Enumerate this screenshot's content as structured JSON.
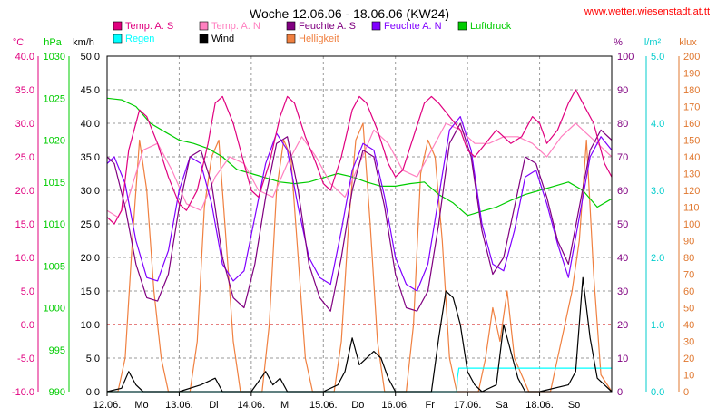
{
  "chart_data": {
    "type": "line",
    "title": "Woche 12.06.06 - 18.06.06 (KW24)",
    "source_label": "www.wetter.wiesenstadt.at.tt",
    "x": {
      "ticks": [
        "12.06.",
        "13.06.",
        "14.06.",
        "15.06.",
        "16.06.",
        "17.06.",
        "18.06."
      ],
      "day_names": [
        "Mo",
        "Di",
        "Mi",
        "Do",
        "Fr",
        "Sa",
        "So"
      ],
      "range_days": [
        0,
        7
      ]
    },
    "axes": [
      {
        "key": "temp",
        "unit": "°C",
        "range": [
          -10,
          40
        ],
        "color": "#e0007f",
        "ticks": [
          "40.0",
          "35.0",
          "30.0",
          "25.0",
          "20.0",
          "15.0",
          "10.0",
          "5.0",
          "0.0",
          "-5.0",
          "-10.0"
        ]
      },
      {
        "key": "pressure",
        "unit": "hPa",
        "range": [
          990,
          1030
        ],
        "color": "#00cc00",
        "ticks": [
          "1030",
          "1025",
          "1020",
          "1015",
          "1010",
          "1005",
          "1000",
          "995",
          "990"
        ]
      },
      {
        "key": "wind",
        "unit": "km/h",
        "range": [
          0,
          50
        ],
        "color": "#000000",
        "ticks": [
          "50.0",
          "45.0",
          "40.0",
          "35.0",
          "30.0",
          "25.0",
          "20.0",
          "15.0",
          "10.0",
          "5.0",
          "0.0"
        ]
      },
      {
        "key": "humidity",
        "unit": "%",
        "range": [
          0,
          100
        ],
        "color": "#800080",
        "ticks": [
          "100",
          "90",
          "80",
          "70",
          "60",
          "50",
          "40",
          "30",
          "20",
          "10",
          "0"
        ]
      },
      {
        "key": "rain",
        "unit": "l/m²",
        "range": [
          0,
          5
        ],
        "color": "#00cccc",
        "ticks": [
          "5.0",
          "4.0",
          "3.0",
          "2.0",
          "1.0",
          "0.0"
        ]
      },
      {
        "key": "light",
        "unit": "klux",
        "range": [
          0,
          200
        ],
        "color": "#e07830",
        "ticks": [
          "200",
          "190",
          "180",
          "170",
          "160",
          "150",
          "140",
          "130",
          "120",
          "110",
          "100",
          "90",
          "80",
          "70",
          "60",
          "50",
          "40",
          "30",
          "20",
          "10",
          "0"
        ]
      }
    ],
    "legend": [
      {
        "name": "Temp. A. S",
        "color": "#e0007f"
      },
      {
        "name": "Temp. A. N",
        "color": "#ff80c0"
      },
      {
        "name": "Feuchte A. S",
        "color": "#800080"
      },
      {
        "name": "Feuchte A. N",
        "color": "#8000ff"
      },
      {
        "name": "Luftdruck",
        "color": "#00cc00"
      },
      {
        "name": "Regen",
        "color": "#00ffff"
      },
      {
        "name": "Wind",
        "color": "#000000"
      },
      {
        "name": "Helligkeit",
        "color": "#f08040"
      }
    ],
    "series": [
      {
        "name": "Temp. A. S",
        "axis": "temp",
        "color": "#e0007f",
        "x": [
          0,
          0.1,
          0.2,
          0.3,
          0.45,
          0.55,
          0.7,
          0.85,
          1.0,
          1.1,
          1.25,
          1.4,
          1.5,
          1.6,
          1.75,
          1.9,
          2.0,
          2.1,
          2.25,
          2.4,
          2.5,
          2.6,
          2.75,
          2.9,
          3.0,
          3.1,
          3.25,
          3.4,
          3.5,
          3.6,
          3.75,
          3.9,
          4.0,
          4.1,
          4.25,
          4.4,
          4.5,
          4.6,
          4.75,
          4.9,
          5.0,
          5.1,
          5.25,
          5.4,
          5.5,
          5.6,
          5.75,
          5.9,
          6.0,
          6.1,
          6.25,
          6.4,
          6.5,
          6.6,
          6.75,
          6.9,
          7.0
        ],
        "y": [
          16,
          15,
          17,
          26,
          32,
          31,
          27,
          22,
          18,
          17,
          20,
          27,
          33,
          34,
          30,
          24,
          20,
          19,
          24,
          31,
          34,
          33,
          28,
          24,
          21,
          20,
          25,
          32,
          34,
          33,
          29,
          24,
          22,
          23,
          28,
          33,
          34,
          33,
          31,
          29,
          26,
          25,
          27,
          29,
          28,
          27,
          28,
          31,
          30,
          27,
          29,
          33,
          35,
          33,
          30,
          24,
          22
        ]
      },
      {
        "name": "Temp. A. N",
        "axis": "temp",
        "color": "#ff80c0",
        "x": [
          0,
          0.15,
          0.3,
          0.5,
          0.7,
          0.9,
          1.1,
          1.3,
          1.5,
          1.7,
          1.9,
          2.1,
          2.3,
          2.5,
          2.7,
          2.9,
          3.1,
          3.3,
          3.5,
          3.7,
          3.9,
          4.1,
          4.3,
          4.5,
          4.7,
          4.9,
          5.1,
          5.3,
          5.5,
          5.7,
          5.9,
          6.1,
          6.3,
          6.5,
          6.7,
          6.9,
          7.0
        ],
        "y": [
          17,
          16,
          19,
          26,
          27,
          23,
          18,
          17,
          22,
          25,
          24,
          20,
          19,
          24,
          28,
          25,
          21,
          19,
          24,
          29,
          27,
          23,
          22,
          26,
          30,
          29,
          27,
          27,
          28,
          28,
          27,
          25,
          28,
          30,
          28,
          26,
          25
        ]
      },
      {
        "name": "Feuchte A. S",
        "axis": "humidity",
        "color": "#800080",
        "x": [
          0,
          0.1,
          0.25,
          0.4,
          0.55,
          0.7,
          0.85,
          1.0,
          1.15,
          1.3,
          1.45,
          1.6,
          1.75,
          1.9,
          2.05,
          2.2,
          2.35,
          2.5,
          2.65,
          2.8,
          2.95,
          3.1,
          3.25,
          3.4,
          3.55,
          3.7,
          3.85,
          4.0,
          4.15,
          4.3,
          4.45,
          4.6,
          4.75,
          4.9,
          5.05,
          5.2,
          5.35,
          5.5,
          5.65,
          5.8,
          5.95,
          6.1,
          6.25,
          6.4,
          6.55,
          6.7,
          6.85,
          7.0
        ],
        "y": [
          70,
          68,
          55,
          38,
          28,
          27,
          35,
          55,
          70,
          72,
          62,
          40,
          28,
          25,
          38,
          58,
          74,
          76,
          60,
          38,
          28,
          24,
          40,
          60,
          72,
          70,
          55,
          35,
          25,
          24,
          30,
          50,
          74,
          80,
          70,
          48,
          35,
          40,
          55,
          70,
          68,
          58,
          45,
          38,
          55,
          72,
          78,
          75
        ]
      },
      {
        "name": "Feuchte A. N",
        "axis": "humidity",
        "color": "#8000ff",
        "x": [
          0,
          0.1,
          0.25,
          0.4,
          0.55,
          0.7,
          0.85,
          1.0,
          1.15,
          1.3,
          1.45,
          1.6,
          1.75,
          1.9,
          2.05,
          2.2,
          2.35,
          2.5,
          2.65,
          2.8,
          2.95,
          3.1,
          3.25,
          3.4,
          3.55,
          3.7,
          3.85,
          4.0,
          4.15,
          4.3,
          4.45,
          4.6,
          4.75,
          4.9,
          5.05,
          5.2,
          5.35,
          5.5,
          5.65,
          5.8,
          5.95,
          6.1,
          6.25,
          6.4,
          6.55,
          6.7,
          6.85,
          7.0
        ],
        "y": [
          68,
          70,
          62,
          45,
          34,
          33,
          42,
          60,
          70,
          68,
          56,
          38,
          33,
          36,
          52,
          68,
          77,
          72,
          55,
          40,
          34,
          32,
          48,
          66,
          74,
          72,
          58,
          40,
          32,
          30,
          38,
          58,
          78,
          82,
          72,
          50,
          38,
          36,
          48,
          64,
          66,
          56,
          44,
          34,
          52,
          70,
          76,
          72
        ]
      },
      {
        "name": "Luftdruck",
        "axis": "pressure",
        "color": "#00cc00",
        "x": [
          0,
          0.2,
          0.4,
          0.6,
          0.8,
          1.0,
          1.2,
          1.4,
          1.6,
          1.8,
          2.0,
          2.2,
          2.4,
          2.6,
          2.8,
          3.0,
          3.2,
          3.4,
          3.6,
          3.8,
          4.0,
          4.2,
          4.4,
          4.6,
          4.8,
          5.0,
          5.2,
          5.4,
          5.6,
          5.8,
          6.0,
          6.2,
          6.4,
          6.6,
          6.8,
          7.0
        ],
        "y": [
          1025,
          1024.8,
          1024,
          1022,
          1021,
          1020,
          1019.6,
          1019,
          1018,
          1016.5,
          1016,
          1015.5,
          1015,
          1014.8,
          1015,
          1015.5,
          1016,
          1015.6,
          1015,
          1014.5,
          1014.5,
          1014.8,
          1015,
          1013.5,
          1012.5,
          1011,
          1011.5,
          1012,
          1012.8,
          1013.5,
          1014,
          1014.5,
          1015,
          1014,
          1012,
          1013
        ]
      },
      {
        "name": "Regen",
        "axis": "rain",
        "color": "#00ffff",
        "x": [
          0,
          4.85,
          4.86,
          4.88,
          5.0,
          5.5,
          6.0,
          6.5,
          7.0
        ],
        "y": [
          0,
          0,
          0.2,
          0.35,
          0.35,
          0.35,
          0.35,
          0.35,
          0.35
        ]
      },
      {
        "name": "Wind",
        "axis": "wind",
        "color": "#000000",
        "x": [
          0,
          0.2,
          0.3,
          0.4,
          0.5,
          1.0,
          1.3,
          1.5,
          1.6,
          2.0,
          2.2,
          2.3,
          2.4,
          2.5,
          3.0,
          3.2,
          3.3,
          3.4,
          3.5,
          3.7,
          3.8,
          3.9,
          4.0,
          4.5,
          4.6,
          4.7,
          4.8,
          4.9,
          5.0,
          5.1,
          5.2,
          5.4,
          5.5,
          5.6,
          5.7,
          5.8,
          6.0,
          6.4,
          6.5,
          6.6,
          6.7,
          6.8,
          7.0
        ],
        "y": [
          0,
          0.5,
          3,
          1,
          0,
          0,
          1,
          2,
          0,
          0,
          3,
          1,
          2,
          0,
          0,
          1,
          3,
          8,
          4,
          6,
          5,
          2,
          0,
          0,
          8,
          15,
          14,
          10,
          3,
          1,
          0,
          1,
          10,
          6,
          2,
          0,
          0,
          1,
          3,
          17,
          8,
          2,
          0
        ]
      },
      {
        "name": "Helligkeit",
        "axis": "light",
        "color": "#f08040",
        "x": [
          0,
          0.15,
          0.25,
          0.35,
          0.45,
          0.55,
          0.65,
          0.75,
          0.85,
          1.0,
          1.15,
          1.25,
          1.35,
          1.45,
          1.55,
          1.65,
          1.75,
          1.85,
          2.0,
          2.15,
          2.25,
          2.35,
          2.45,
          2.55,
          2.65,
          2.75,
          2.85,
          3.0,
          3.15,
          3.25,
          3.35,
          3.45,
          3.55,
          3.65,
          3.75,
          3.85,
          4.0,
          4.15,
          4.25,
          4.35,
          4.45,
          4.55,
          4.65,
          4.75,
          4.85,
          5.0,
          5.15,
          5.25,
          5.35,
          5.45,
          5.55,
          5.65,
          5.75,
          5.85,
          6.0,
          6.15,
          6.25,
          6.35,
          6.45,
          6.55,
          6.65,
          6.75,
          6.85,
          7.0
        ],
        "y": [
          0,
          0,
          20,
          90,
          150,
          120,
          60,
          20,
          0,
          0,
          0,
          30,
          110,
          140,
          150,
          90,
          30,
          0,
          0,
          0,
          40,
          120,
          150,
          140,
          80,
          20,
          0,
          0,
          0,
          30,
          100,
          150,
          160,
          100,
          30,
          0,
          0,
          0,
          40,
          130,
          150,
          140,
          90,
          20,
          0,
          0,
          0,
          20,
          50,
          30,
          60,
          20,
          10,
          0,
          0,
          0,
          20,
          40,
          60,
          90,
          150,
          70,
          10,
          0
        ]
      }
    ]
  }
}
